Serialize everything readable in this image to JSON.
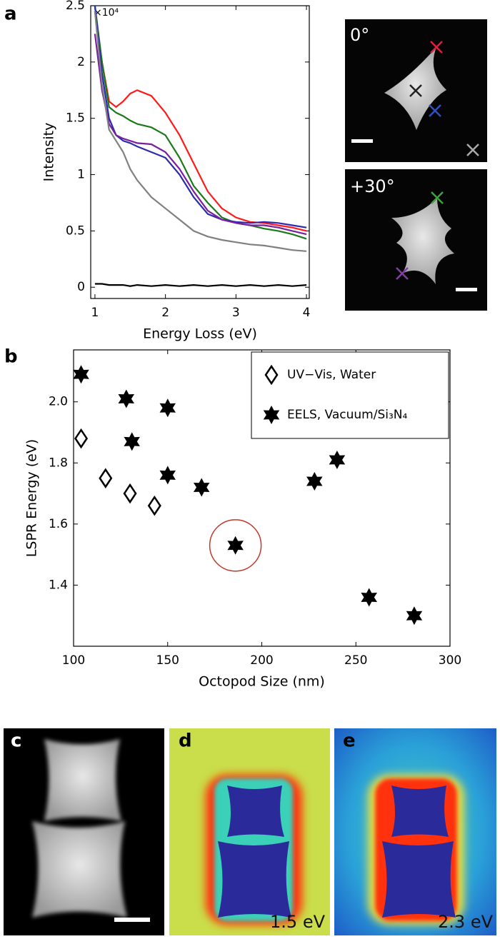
{
  "panel_labels": [
    "a",
    "b",
    "c",
    "d",
    "e"
  ],
  "images": {
    "top_angle": "0°",
    "bottom_angle": "+30°",
    "d_energy": "1.5 eV",
    "e_energy": "2.3 eV"
  },
  "chart_data": [
    {
      "type": "line",
      "xlabel": "Energy Loss (eV)",
      "ylabel": "Intensity",
      "y_multiplier": "×10⁴",
      "x": [
        1.0,
        1.1,
        1.2,
        1.3,
        1.4,
        1.5,
        1.6,
        1.8,
        2.0,
        2.2,
        2.4,
        2.6,
        2.8,
        3.0,
        3.2,
        3.4,
        3.6,
        3.8,
        4.0
      ],
      "series": [
        {
          "color": "#ff1a1a",
          "values": [
            2.45,
            2.0,
            1.65,
            1.6,
            1.65,
            1.72,
            1.75,
            1.7,
            1.55,
            1.35,
            1.1,
            0.85,
            0.7,
            0.62,
            0.58,
            0.57,
            0.55,
            0.53,
            0.5
          ]
        },
        {
          "color": "#1a7a1a",
          "values": [
            2.5,
            2.0,
            1.6,
            1.55,
            1.52,
            1.48,
            1.45,
            1.42,
            1.35,
            1.15,
            0.9,
            0.75,
            0.62,
            0.57,
            0.55,
            0.52,
            0.5,
            0.47,
            0.43
          ]
        },
        {
          "color": "#2b2bb0",
          "values": [
            2.5,
            1.9,
            1.5,
            1.35,
            1.3,
            1.28,
            1.25,
            1.2,
            1.15,
            1.0,
            0.8,
            0.65,
            0.6,
            0.58,
            0.57,
            0.58,
            0.57,
            0.55,
            0.53
          ]
        },
        {
          "color": "#7a1fa0",
          "values": [
            2.25,
            1.75,
            1.45,
            1.35,
            1.32,
            1.3,
            1.28,
            1.27,
            1.2,
            1.05,
            0.85,
            0.68,
            0.6,
            0.57,
            0.55,
            0.55,
            0.53,
            0.5,
            0.47
          ]
        },
        {
          "color": "#808080",
          "values": [
            2.45,
            1.8,
            1.4,
            1.3,
            1.2,
            1.05,
            0.95,
            0.8,
            0.7,
            0.6,
            0.5,
            0.45,
            0.42,
            0.4,
            0.38,
            0.37,
            0.35,
            0.33,
            0.32
          ]
        },
        {
          "color": "#000000",
          "values": [
            0.03,
            0.03,
            0.02,
            0.02,
            0.02,
            0.01,
            0.02,
            0.01,
            0.02,
            0.01,
            0.02,
            0.01,
            0.02,
            0.01,
            0.02,
            0.01,
            0.02,
            0.01,
            0.02
          ]
        }
      ],
      "xlim": [
        0.94,
        4.04
      ],
      "xticks": [
        1,
        2,
        3,
        4
      ],
      "ylim": [
        -0.1,
        2.5
      ],
      "yticks": [
        0,
        0.5,
        1,
        1.5,
        2,
        2.5
      ]
    },
    {
      "type": "scatter",
      "xlabel": "Octopod Size (nm)",
      "ylabel": "LSPR Energy (eV)",
      "legend": "upper right",
      "series": [
        {
          "name": "UV−Vis, Water",
          "marker": "diamond",
          "x": [
            104,
            117,
            130,
            143
          ],
          "values": [
            1.88,
            1.75,
            1.7,
            1.66
          ]
        },
        {
          "name": "EELS, Vacuum/Si₃N₄",
          "marker": "star",
          "x": [
            104,
            128,
            131,
            150,
            150,
            168,
            186,
            228,
            240,
            257,
            281
          ],
          "values": [
            2.09,
            2.01,
            1.87,
            1.98,
            1.76,
            1.72,
            1.53,
            1.74,
            1.81,
            1.36,
            1.3
          ]
        }
      ],
      "highlight": {
        "series": 1,
        "index": 6,
        "color": "#c0392b"
      },
      "xlim": [
        100,
        300
      ],
      "xticks": [
        100,
        150,
        200,
        250,
        300
      ],
      "ylim": [
        1.2,
        2.17
      ],
      "yticks": [
        1.4,
        1.6,
        1.8,
        {
          "value": 2,
          "label": "2.0"
        }
      ]
    }
  ]
}
